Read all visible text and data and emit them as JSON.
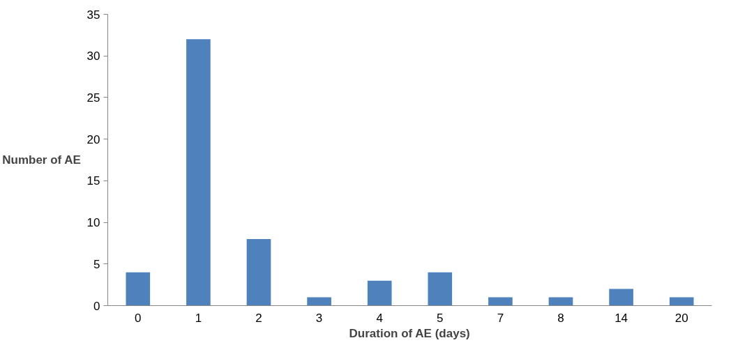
{
  "chart_data": {
    "type": "bar",
    "xlabel": "Duration of AE (days)",
    "ylabel": "Number of AE",
    "categories": [
      "0",
      "1",
      "2",
      "3",
      "4",
      "5",
      "7",
      "8",
      "14",
      "20"
    ],
    "values": [
      4,
      32,
      8,
      1,
      3,
      4,
      1,
      1,
      2,
      1
    ],
    "color": "#4f81bd",
    "ylim": [
      0,
      35
    ],
    "yticks": [
      0,
      5,
      10,
      15,
      20,
      25,
      30,
      35
    ],
    "grid": false
  }
}
